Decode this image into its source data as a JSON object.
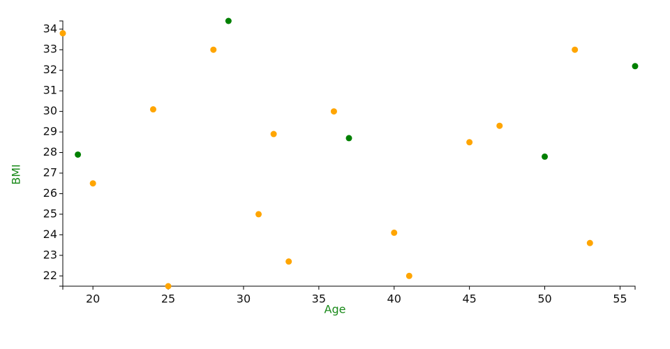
{
  "chart_data": {
    "type": "scatter",
    "x_label": "Age",
    "y_label": "BMI",
    "axis_title_color": "#1a8a1a",
    "xlim": [
      18,
      56
    ],
    "ylim": [
      21.5,
      34.4
    ],
    "xticks": [
      20,
      25,
      30,
      35,
      40,
      45,
      50,
      55
    ],
    "yticks": [
      22,
      23,
      24,
      25,
      26,
      27,
      28,
      29,
      30,
      31,
      32,
      33,
      34
    ],
    "series": [
      {
        "color": "orange",
        "x": [
          18,
          20,
          24,
          25,
          28,
          31,
          32,
          33,
          36,
          40,
          41,
          45,
          47,
          52,
          53
        ],
        "values": [
          33.8,
          26.5,
          30.1,
          21.5,
          33.0,
          25.0,
          28.9,
          22.7,
          30.0,
          24.1,
          22.0,
          28.5,
          29.3,
          33.0,
          23.6
        ]
      },
      {
        "color": "green",
        "x": [
          19,
          29,
          37,
          50,
          56
        ],
        "values": [
          27.9,
          34.4,
          28.7,
          27.8,
          32.2
        ]
      }
    ]
  }
}
